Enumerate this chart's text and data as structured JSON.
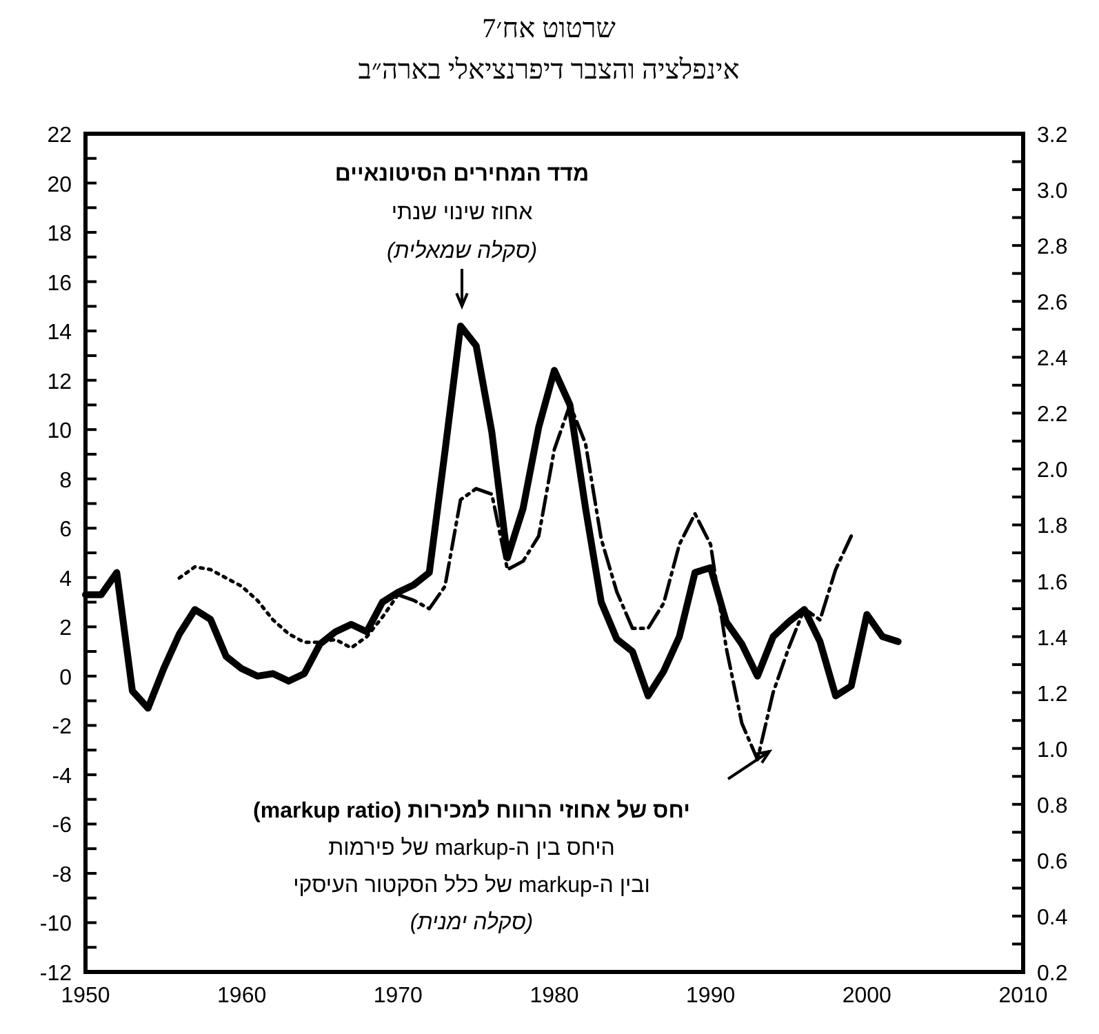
{
  "chart_data": {
    "type": "line",
    "title": "שרטוט אח׳7",
    "subtitle": "אינפלציה והצבר דיפרנציאלי בארה״ב",
    "xlim": [
      1950,
      2010
    ],
    "xticks": [
      1950,
      1960,
      1970,
      1980,
      1990,
      2000,
      2010
    ],
    "ylim": [
      -12,
      22
    ],
    "yticks": [
      -12,
      {
        "value": -11,
        "label": null
      },
      -10,
      {
        "value": -9,
        "label": null
      },
      -8,
      {
        "value": -7,
        "label": null
      },
      -6,
      {
        "value": -5,
        "label": null
      },
      -4,
      {
        "value": -3,
        "label": null
      },
      -2,
      {
        "value": -1,
        "label": null
      },
      0,
      {
        "value": 1,
        "label": null
      },
      2,
      {
        "value": 3,
        "label": null
      },
      4,
      {
        "value": 5,
        "label": null
      },
      6,
      {
        "value": 7,
        "label": null
      },
      8,
      {
        "value": 9,
        "label": null
      },
      10,
      {
        "value": 11,
        "label": null
      },
      12,
      {
        "value": 13,
        "label": null
      },
      14,
      {
        "value": 15,
        "label": null
      },
      16,
      {
        "value": 17,
        "label": null
      },
      18,
      {
        "value": 19,
        "label": null
      },
      20,
      {
        "value": 21,
        "label": null
      },
      22
    ],
    "y2lim": [
      0.2,
      3.2
    ],
    "y2ticks": [
      {
        "value": 0.2,
        "label": "0.2"
      },
      {
        "value": 0.3,
        "label": null
      },
      {
        "value": 0.4,
        "label": "0.4"
      },
      {
        "value": 0.5,
        "label": null
      },
      {
        "value": 0.6,
        "label": "0.6"
      },
      {
        "value": 0.7,
        "label": null
      },
      {
        "value": 0.8,
        "label": "0.8"
      },
      {
        "value": 0.9,
        "label": null
      },
      {
        "value": 1.0,
        "label": "1.0"
      },
      {
        "value": 1.1,
        "label": null
      },
      {
        "value": 1.2,
        "label": "1.2"
      },
      {
        "value": 1.3,
        "label": null
      },
      {
        "value": 1.4,
        "label": "1.4"
      },
      {
        "value": 1.5,
        "label": null
      },
      {
        "value": 1.6,
        "label": "1.6"
      },
      {
        "value": 1.7,
        "label": null
      },
      {
        "value": 1.8,
        "label": "1.8"
      },
      {
        "value": 1.9,
        "label": null
      },
      {
        "value": 2.0,
        "label": "2.0"
      },
      {
        "value": 2.1,
        "label": null
      },
      {
        "value": 2.2,
        "label": "2.2"
      },
      {
        "value": 2.3,
        "label": null
      },
      {
        "value": 2.4,
        "label": "2.4"
      },
      {
        "value": 2.5,
        "label": null
      },
      {
        "value": 2.6,
        "label": "2.6"
      },
      {
        "value": 2.7,
        "label": null
      },
      {
        "value": 2.8,
        "label": "2.8"
      },
      {
        "value": 2.9,
        "label": null
      },
      {
        "value": 3.0,
        "label": "3.0"
      },
      {
        "value": 3.1,
        "label": null
      },
      {
        "value": 3.2,
        "label": "3.2"
      }
    ],
    "series": [
      {
        "color": "#000000",
        "line_style": "solid",
        "x": [
          1950,
          1951,
          1952,
          1953,
          1954,
          1955,
          1956,
          1957,
          1958,
          1959,
          1960,
          1961,
          1962,
          1963,
          1964,
          1965,
          1966,
          1967,
          1968,
          1969,
          1970,
          1971,
          1972,
          1973,
          1974,
          1975,
          1976,
          1977,
          1978,
          1979,
          1980,
          1981,
          1982,
          1983,
          1984,
          1985,
          1986,
          1987,
          1988,
          1989,
          1990,
          1991,
          1992,
          1993,
          1994,
          1995,
          1996,
          1997,
          1998,
          1999,
          2000,
          2001,
          2002
        ],
        "values": [
          3.3,
          3.3,
          4.2,
          -0.6,
          -1.3,
          0.3,
          1.7,
          2.7,
          2.3,
          0.8,
          0.3,
          0.0,
          0.1,
          -0.2,
          0.1,
          1.3,
          1.8,
          2.1,
          1.8,
          3.0,
          3.4,
          3.7,
          4.2,
          9.1,
          14.2,
          13.4,
          9.9,
          4.8,
          6.8,
          10.1,
          12.4,
          11.0,
          6.8,
          3.0,
          1.5,
          1.0,
          -0.8,
          0.2,
          1.6,
          4.2,
          4.4,
          2.2,
          1.3,
          0.0,
          1.6,
          2.2,
          2.7,
          1.4,
          -0.8,
          -0.4,
          2.5,
          1.6,
          1.4
        ]
      },
      {
        "color": "#000000",
        "line_style": "dotted",
        "axis": "y2",
        "x": [
          1956,
          1957,
          1958,
          1959,
          1960,
          1961,
          1962,
          1963,
          1964,
          1965,
          1966,
          1967,
          1968,
          1969,
          1970
        ],
        "values": [
          1.61,
          1.65,
          1.64,
          1.61,
          1.58,
          1.53,
          1.46,
          1.41,
          1.38,
          1.38,
          1.39,
          1.36,
          1.4,
          1.47,
          1.55
        ]
      },
      {
        "color": "#000000",
        "line_style": "dashed",
        "axis": "y2",
        "x": [
          1970,
          1971,
          1972,
          1973,
          1974,
          1975,
          1976,
          1977,
          1978,
          1979,
          1980,
          1981,
          1982,
          1983,
          1984,
          1985,
          1986,
          1987,
          1988,
          1989,
          1990,
          1991,
          1992,
          1993,
          1994,
          1995,
          1996,
          1997,
          1998,
          1999
        ],
        "values": [
          1.55,
          1.53,
          1.5,
          1.58,
          1.89,
          1.93,
          1.91,
          1.64,
          1.67,
          1.76,
          2.07,
          2.23,
          2.09,
          1.75,
          1.56,
          1.43,
          1.43,
          1.52,
          1.73,
          1.84,
          1.73,
          1.36,
          1.09,
          0.96,
          1.2,
          1.36,
          1.5,
          1.46,
          1.64,
          1.76
        ]
      }
    ],
    "annotations": [
      "מדד המחירים הסיטונאיים",
      "אחוז שינוי שנתי",
      "(סקלה שמאלית)",
      "יחס של אחוזי הרווח למכירות (markup ratio)",
      "היחס בין ה-markup של פירמות",
      "ובין ה-markup של כלל הסקטור העיסקי",
      "(סקלה ימנית)"
    ]
  }
}
